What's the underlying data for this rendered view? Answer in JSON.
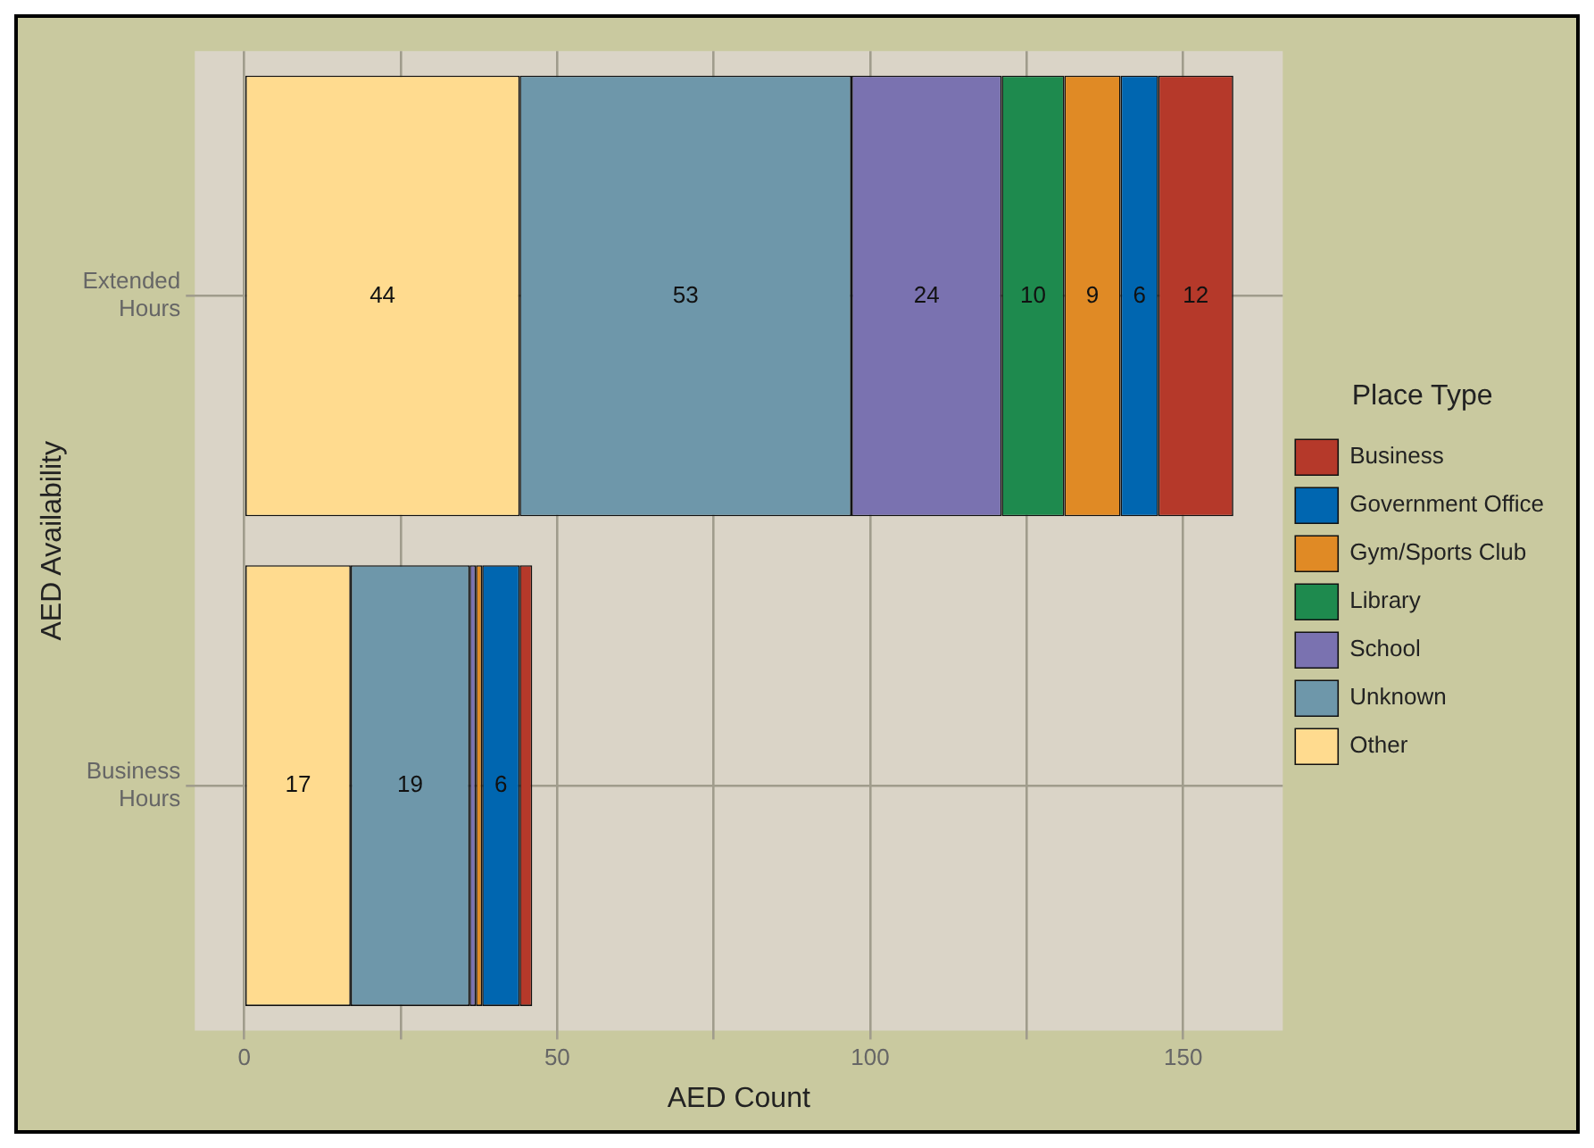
{
  "chart_data": {
    "type": "bar",
    "orientation": "horizontal",
    "stacked": true,
    "xlabel": "AED Count",
    "ylabel": "AED Availability",
    "legend_title": "Place Type",
    "categories": [
      "Extended Hours",
      "Business Hours"
    ],
    "series": [
      {
        "name": "Other",
        "color": "#ffdb8f",
        "values": [
          44,
          17
        ],
        "value_labels": [
          "44",
          "17"
        ]
      },
      {
        "name": "Unknown",
        "color": "#6e97aa",
        "values": [
          53,
          19
        ],
        "value_labels": [
          "53",
          "19"
        ]
      },
      {
        "name": "School",
        "color": "#7a72b0",
        "values": [
          24,
          1
        ],
        "value_labels": [
          "24",
          null
        ]
      },
      {
        "name": "Library",
        "color": "#1e8a4e",
        "values": [
          10,
          null
        ],
        "value_labels": [
          "10",
          null
        ]
      },
      {
        "name": "Gym/Sports Club",
        "color": "#e08a25",
        "values": [
          9,
          1
        ],
        "value_labels": [
          "9",
          null
        ]
      },
      {
        "name": "Government Office",
        "color": "#0066b0",
        "values": [
          6,
          6
        ],
        "value_labels": [
          "6",
          "6"
        ]
      },
      {
        "name": "Business",
        "color": "#b5392a",
        "values": [
          12,
          2
        ],
        "value_labels": [
          "12",
          null
        ]
      }
    ],
    "xlim": [
      -7.9,
      165.9
    ],
    "xticks": [
      0,
      {
        "value": 25,
        "label": null
      },
      50,
      {
        "value": 75,
        "label": null
      },
      100,
      {
        "value": 125,
        "label": null
      },
      150
    ],
    "grid": true,
    "legend": "right"
  }
}
